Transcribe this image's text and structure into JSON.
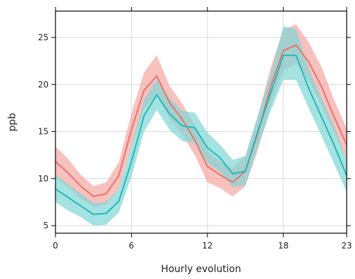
{
  "chart_data": {
    "type": "line",
    "title": "",
    "xlabel": "Hourly evolution",
    "ylabel": "ppb",
    "xlim": [
      0,
      23
    ],
    "ylim": [
      4.2,
      27.8
    ],
    "x_ticks": [
      0,
      6,
      12,
      18,
      23
    ],
    "y_ticks": [
      5,
      10,
      15,
      20,
      25
    ],
    "grid": true,
    "legend": "none",
    "x": [
      0,
      1,
      2,
      3,
      4,
      5,
      6,
      7,
      8,
      9,
      10,
      11,
      12,
      13,
      14,
      15,
      16,
      17,
      18,
      19,
      20,
      21,
      22,
      23
    ],
    "series": [
      {
        "color": "#E8736C",
        "band_color": "#F4A6A2",
        "values": [
          11.8,
          10.6,
          9.2,
          8.1,
          8.4,
          10.3,
          15.2,
          19.4,
          20.9,
          18.1,
          16.3,
          14.1,
          11.3,
          10.4,
          9.6,
          10.8,
          14.9,
          19.8,
          23.6,
          24.2,
          22.4,
          19.8,
          16.6,
          13.6
        ],
        "lower": [
          10.2,
          9.1,
          7.9,
          7.0,
          7.2,
          8.9,
          13.4,
          17.5,
          18.9,
          16.4,
          14.7,
          12.5,
          9.6,
          9.0,
          8.1,
          9.2,
          13.1,
          17.8,
          21.5,
          22.2,
          20.4,
          17.8,
          14.9,
          12.0
        ],
        "upper": [
          13.4,
          12.1,
          10.4,
          9.2,
          9.6,
          11.7,
          16.9,
          21.3,
          23.1,
          19.9,
          18.0,
          15.7,
          13.0,
          11.8,
          11.1,
          12.4,
          16.7,
          21.8,
          25.8,
          26.4,
          24.5,
          21.9,
          18.4,
          15.3
        ]
      },
      {
        "color": "#1FB8B8",
        "band_color": "#7FD6D6",
        "values": [
          8.9,
          8.0,
          7.1,
          6.2,
          6.3,
          7.6,
          11.8,
          16.7,
          18.9,
          16.9,
          15.6,
          15.4,
          13.3,
          12.2,
          10.5,
          10.8,
          15.1,
          19.1,
          23.1,
          23.1,
          19.6,
          16.6,
          13.6,
          10.3
        ],
        "lower": [
          7.5,
          6.6,
          5.9,
          5.0,
          5.1,
          6.4,
          10.2,
          15.0,
          17.3,
          15.2,
          14.0,
          13.8,
          11.7,
          10.7,
          9.1,
          9.3,
          13.4,
          17.2,
          20.5,
          20.5,
          17.5,
          14.6,
          11.6,
          8.6
        ],
        "upper": [
          10.4,
          9.4,
          8.4,
          7.4,
          7.5,
          8.9,
          13.4,
          18.4,
          20.5,
          18.6,
          17.2,
          17.0,
          14.9,
          13.6,
          12.0,
          12.4,
          16.8,
          21.1,
          26.2,
          25.9,
          21.7,
          18.6,
          15.6,
          12.0
        ]
      }
    ]
  }
}
